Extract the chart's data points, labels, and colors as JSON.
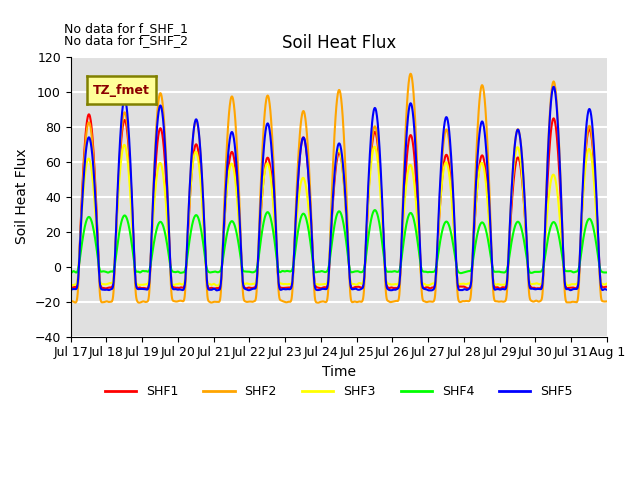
{
  "title": "Soil Heat Flux",
  "ylabel": "Soil Heat Flux",
  "xlabel": "Time",
  "annotation_lines": [
    "No data for f_SHF_1",
    "No data for f_SHF_2"
  ],
  "legend_label": "TZ_fmet",
  "series_labels": [
    "SHF1",
    "SHF2",
    "SHF3",
    "SHF4",
    "SHF5"
  ],
  "series_colors": [
    "red",
    "orange",
    "yellow",
    "lime",
    "blue"
  ],
  "ylim": [
    -40,
    120
  ],
  "yticks": [
    -40,
    -20,
    0,
    20,
    40,
    60,
    80,
    100,
    120
  ],
  "xtick_labels": [
    "Jul 17",
    "Jul 18",
    "Jul 19",
    "Jul 20",
    "Jul 21",
    "Jul 22",
    "Jul 23",
    "Jul 24",
    "Jul 25",
    "Jul 26",
    "Jul 27",
    "Jul 28",
    "Jul 29",
    "Jul 30",
    "Jul 31",
    "Aug 1"
  ],
  "n_days": 15,
  "background_color": "#e0e0e0",
  "grid_color": "white",
  "linewidth": 1.5
}
